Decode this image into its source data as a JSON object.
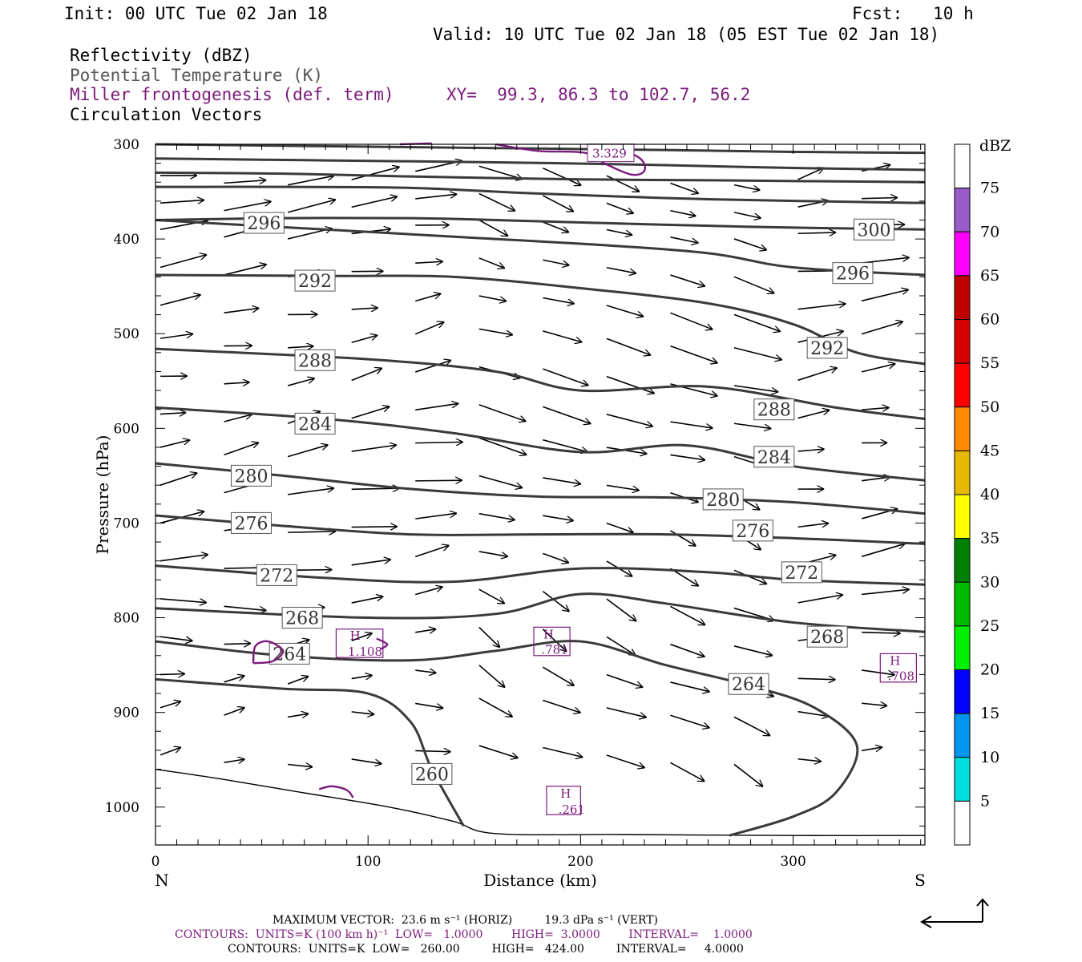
{
  "header": {
    "init": "Init: 00 UTC Tue 02 Jan 18",
    "fcst": "Fcst:   10 h",
    "valid": "Valid: 10 UTC Tue 02 Jan 18 (05 EST Tue 02 Jan 18)",
    "field1": "Reflectivity (dBZ)",
    "field2": "Potential Temperature (K)",
    "field3": "Miller frontogenesis (def. term)",
    "xy": "XY=  99.3, 86.3 to 102.7, 56.2",
    "field4": "Circulation Vectors"
  },
  "footer": {
    "max_vector": "MAXIMUM VECTOR:  23.6 m s⁻¹ (HORIZ)         19.3 dPa s⁻¹ (VERT)",
    "contours1": "CONTOURS:  UNITS=K (100 km h)⁻¹  LOW=   1.0000        HIGH=  3.0000        INTERVAL=    1.0000",
    "contours2": "CONTOURS:  UNITS=K  LOW=   260.00         HIGH=   424.00         INTERVAL=     4.0000"
  },
  "chart_data": {
    "type": "cross-section",
    "xlabel": "Distance (km)",
    "ylabel": "Pressure (hPa)",
    "xlim": [
      0,
      362
    ],
    "ylim": [
      1040,
      300
    ],
    "x_ticks": [
      0,
      100,
      200,
      300
    ],
    "y_ticks": [
      300,
      400,
      500,
      600,
      700,
      800,
      900,
      1000
    ],
    "end_labels": {
      "left": "N",
      "right": "S"
    },
    "colorbar": {
      "unit": "dBZ",
      "labels": [
        "75",
        "70",
        "65",
        "60",
        "55",
        "50",
        "45",
        "40",
        "35",
        "30",
        "25",
        "20",
        "15",
        "10",
        "5"
      ],
      "colors": [
        "#ffffff",
        "#9a5cc8",
        "#ff00ff",
        "#c00000",
        "#d80000",
        "#ff0000",
        "#ff8c00",
        "#e6b800",
        "#ffff00",
        "#008000",
        "#00bb00",
        "#00ee00",
        "#0000ff",
        "#0095ee",
        "#00e0e0",
        "#ffffff"
      ]
    },
    "theta_contours": [
      {
        "level": "300",
        "pts": [
          [
            0,
            300
          ],
          [
            80,
            302
          ],
          [
            160,
            304
          ],
          [
            240,
            306
          ],
          [
            300,
            308
          ],
          [
            362,
            309
          ]
        ]
      },
      {
        "level": "",
        "pts": [
          [
            0,
            315
          ],
          [
            80,
            317
          ],
          [
            160,
            319
          ],
          [
            240,
            322
          ],
          [
            300,
            325
          ],
          [
            362,
            327
          ]
        ]
      },
      {
        "level": "",
        "pts": [
          [
            0,
            330
          ],
          [
            60,
            331
          ],
          [
            120,
            334
          ],
          [
            200,
            337
          ],
          [
            260,
            338
          ],
          [
            362,
            340
          ]
        ]
      },
      {
        "level": "",
        "pts": [
          [
            0,
            345
          ],
          [
            60,
            345
          ],
          [
            120,
            346
          ],
          [
            180,
            352
          ],
          [
            260,
            358
          ],
          [
            362,
            362
          ]
        ]
      },
      {
        "level": "",
        "pts": [
          [
            0,
            380
          ],
          [
            60,
            378
          ],
          [
            120,
            378
          ],
          [
            160,
            380
          ],
          [
            240,
            385
          ],
          [
            300,
            388
          ],
          [
            362,
            390
          ]
        ]
      },
      {
        "level": "296",
        "pts": [
          [
            0,
            380
          ],
          [
            120,
            395
          ],
          [
            200,
            405
          ],
          [
            260,
            415
          ],
          [
            300,
            430
          ],
          [
            362,
            438
          ]
        ]
      },
      {
        "level": "292",
        "pts": [
          [
            0,
            438
          ],
          [
            80,
            439
          ],
          [
            140,
            440
          ],
          [
            200,
            452
          ],
          [
            260,
            468
          ],
          [
            300,
            490
          ],
          [
            330,
            520
          ],
          [
            362,
            532
          ]
        ]
      },
      {
        "level": "288",
        "pts": [
          [
            0,
            516
          ],
          [
            100,
            527
          ],
          [
            160,
            540
          ],
          [
            200,
            560
          ],
          [
            260,
            556
          ],
          [
            320,
            578
          ],
          [
            362,
            590
          ]
        ]
      },
      {
        "level": "284",
        "pts": [
          [
            0,
            578
          ],
          [
            80,
            590
          ],
          [
            140,
            605
          ],
          [
            200,
            625
          ],
          [
            250,
            618
          ],
          [
            300,
            640
          ],
          [
            362,
            655
          ]
        ]
      },
      {
        "level": "280",
        "pts": [
          [
            0,
            637
          ],
          [
            60,
            650
          ],
          [
            120,
            664
          ],
          [
            180,
            672
          ],
          [
            240,
            673
          ],
          [
            300,
            678
          ],
          [
            362,
            690
          ]
        ]
      },
      {
        "level": "276",
        "pts": [
          [
            0,
            692
          ],
          [
            60,
            703
          ],
          [
            120,
            712
          ],
          [
            180,
            712
          ],
          [
            240,
            712
          ],
          [
            300,
            716
          ],
          [
            362,
            722
          ]
        ]
      },
      {
        "level": "272",
        "pts": [
          [
            0,
            745
          ],
          [
            80,
            758
          ],
          [
            140,
            762
          ],
          [
            200,
            748
          ],
          [
            260,
            752
          ],
          [
            300,
            760
          ],
          [
            362,
            765
          ]
        ]
      },
      {
        "level": "268",
        "pts": [
          [
            0,
            790
          ],
          [
            100,
            800
          ],
          [
            160,
            796
          ],
          [
            200,
            775
          ],
          [
            240,
            785
          ],
          [
            300,
            805
          ],
          [
            362,
            815
          ]
        ]
      },
      {
        "level": "264",
        "pts": [
          [
            0,
            825
          ],
          [
            60,
            840
          ],
          [
            120,
            845
          ],
          [
            160,
            835
          ],
          [
            200,
            825
          ],
          [
            240,
            850
          ],
          [
            280,
            872
          ],
          [
            310,
            895
          ],
          [
            330,
            935
          ],
          [
            320,
            985
          ],
          [
            300,
            1010
          ],
          [
            270,
            1030
          ]
        ]
      },
      {
        "level": "260",
        "pts": [
          [
            0,
            865
          ],
          [
            60,
            875
          ],
          [
            100,
            880
          ],
          [
            120,
            910
          ],
          [
            130,
            960
          ],
          [
            145,
            1020
          ]
        ]
      }
    ],
    "theta_labels": [
      {
        "text": "300",
        "x": 329,
        "p": 390
      },
      {
        "text": "296",
        "x": 42,
        "p": 383
      },
      {
        "text": "296",
        "x": 319,
        "p": 436
      },
      {
        "text": "292",
        "x": 66,
        "p": 444
      },
      {
        "text": "292",
        "x": 307,
        "p": 515
      },
      {
        "text": "288",
        "x": 66,
        "p": 528
      },
      {
        "text": "288",
        "x": 282,
        "p": 580
      },
      {
        "text": "284",
        "x": 66,
        "p": 595
      },
      {
        "text": "284",
        "x": 282,
        "p": 630
      },
      {
        "text": "280",
        "x": 36,
        "p": 650
      },
      {
        "text": "280",
        "x": 258,
        "p": 675
      },
      {
        "text": "276",
        "x": 36,
        "p": 700
      },
      {
        "text": "276",
        "x": 272,
        "p": 708
      },
      {
        "text": "272",
        "x": 48,
        "p": 755
      },
      {
        "text": "272",
        "x": 295,
        "p": 752
      },
      {
        "text": "268",
        "x": 60,
        "p": 800
      },
      {
        "text": "268",
        "x": 307,
        "p": 820
      },
      {
        "text": "264",
        "x": 54,
        "p": 838
      },
      {
        "text": "264",
        "x": 270,
        "p": 870
      },
      {
        "text": "260",
        "x": 121,
        "p": 965
      }
    ],
    "frontogenesis": {
      "contours": [
        [
          [
            115,
            300
          ],
          [
            130,
            299
          ]
        ],
        [
          [
            160,
            300
          ],
          [
            180,
            307
          ],
          [
            202,
            309
          ],
          [
            212,
            321
          ],
          [
            224,
            332
          ],
          [
            230,
            328
          ],
          [
            228,
            315
          ],
          [
            215,
            300
          ]
        ],
        [
          [
            46,
            848
          ],
          [
            55,
            846
          ],
          [
            60,
            835
          ],
          [
            53,
            825
          ],
          [
            47,
            830
          ],
          [
            46,
            848
          ]
        ],
        [
          [
            104,
            822
          ],
          [
            109,
            828
          ],
          [
            106,
            833
          ]
        ],
        [
          [
            77,
            981
          ],
          [
            83,
            978
          ],
          [
            90,
            982
          ],
          [
            93,
            990
          ]
        ]
      ],
      "labels": [
        {
          "text": "3.329",
          "x": 204,
          "p": 309,
          "boxed": true
        },
        {
          "text": "H",
          "x": 90,
          "p": 818,
          "boxed": false
        },
        {
          "text": "1.108",
          "x": 89,
          "p": 835,
          "boxed": false
        },
        {
          "text": "H",
          "x": 181,
          "p": 817,
          "boxed": false
        },
        {
          "text": ".781",
          "x": 180,
          "p": 833,
          "boxed": false
        },
        {
          "text": "H",
          "x": 344,
          "p": 845,
          "boxed": false
        },
        {
          "text": ".708",
          "x": 343,
          "p": 861,
          "boxed": false
        },
        {
          "text": "H",
          "x": 189,
          "p": 985,
          "boxed": false
        },
        {
          "text": ".261",
          "x": 188,
          "p": 1002,
          "boxed": false
        }
      ],
      "boxes": [
        [
          85,
          812,
          107,
          842
        ],
        [
          178,
          810,
          195,
          840
        ],
        [
          341,
          838,
          358,
          868
        ],
        [
          184,
          978,
          200,
          1008
        ]
      ]
    },
    "ground": [
      [
        0,
        960
      ],
      [
        30,
        970
      ],
      [
        70,
        985
      ],
      [
        110,
        1000
      ],
      [
        140,
        1015
      ],
      [
        160,
        1028
      ],
      [
        220,
        1029
      ],
      [
        300,
        1030
      ],
      [
        362,
        1030
      ]
    ]
  }
}
